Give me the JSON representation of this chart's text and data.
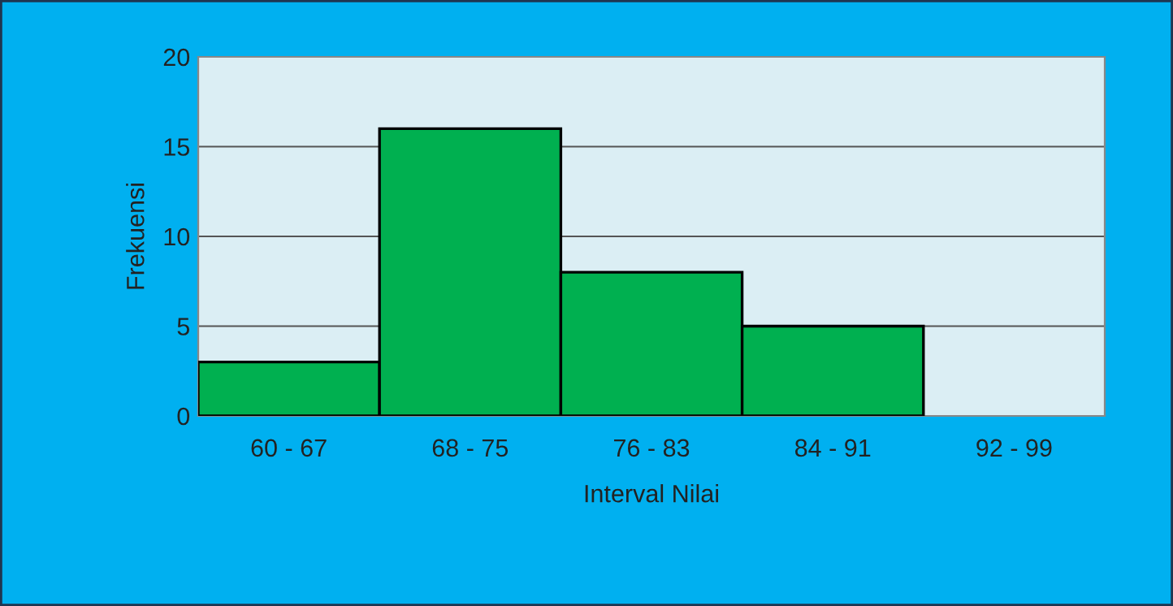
{
  "chart_data": {
    "type": "bar",
    "xlabel": "Interval Nilai",
    "ylabel": "Frekuensi",
    "categories": [
      "60 - 67",
      "68 - 75",
      "76 - 83",
      "84 - 91",
      "92 - 99"
    ],
    "values": [
      3,
      16,
      8,
      5,
      0
    ],
    "color": "#00b050",
    "ylim": [
      0,
      20
    ],
    "yticks": [
      0,
      5,
      10,
      15,
      20
    ],
    "grid": "y",
    "legend": false
  }
}
